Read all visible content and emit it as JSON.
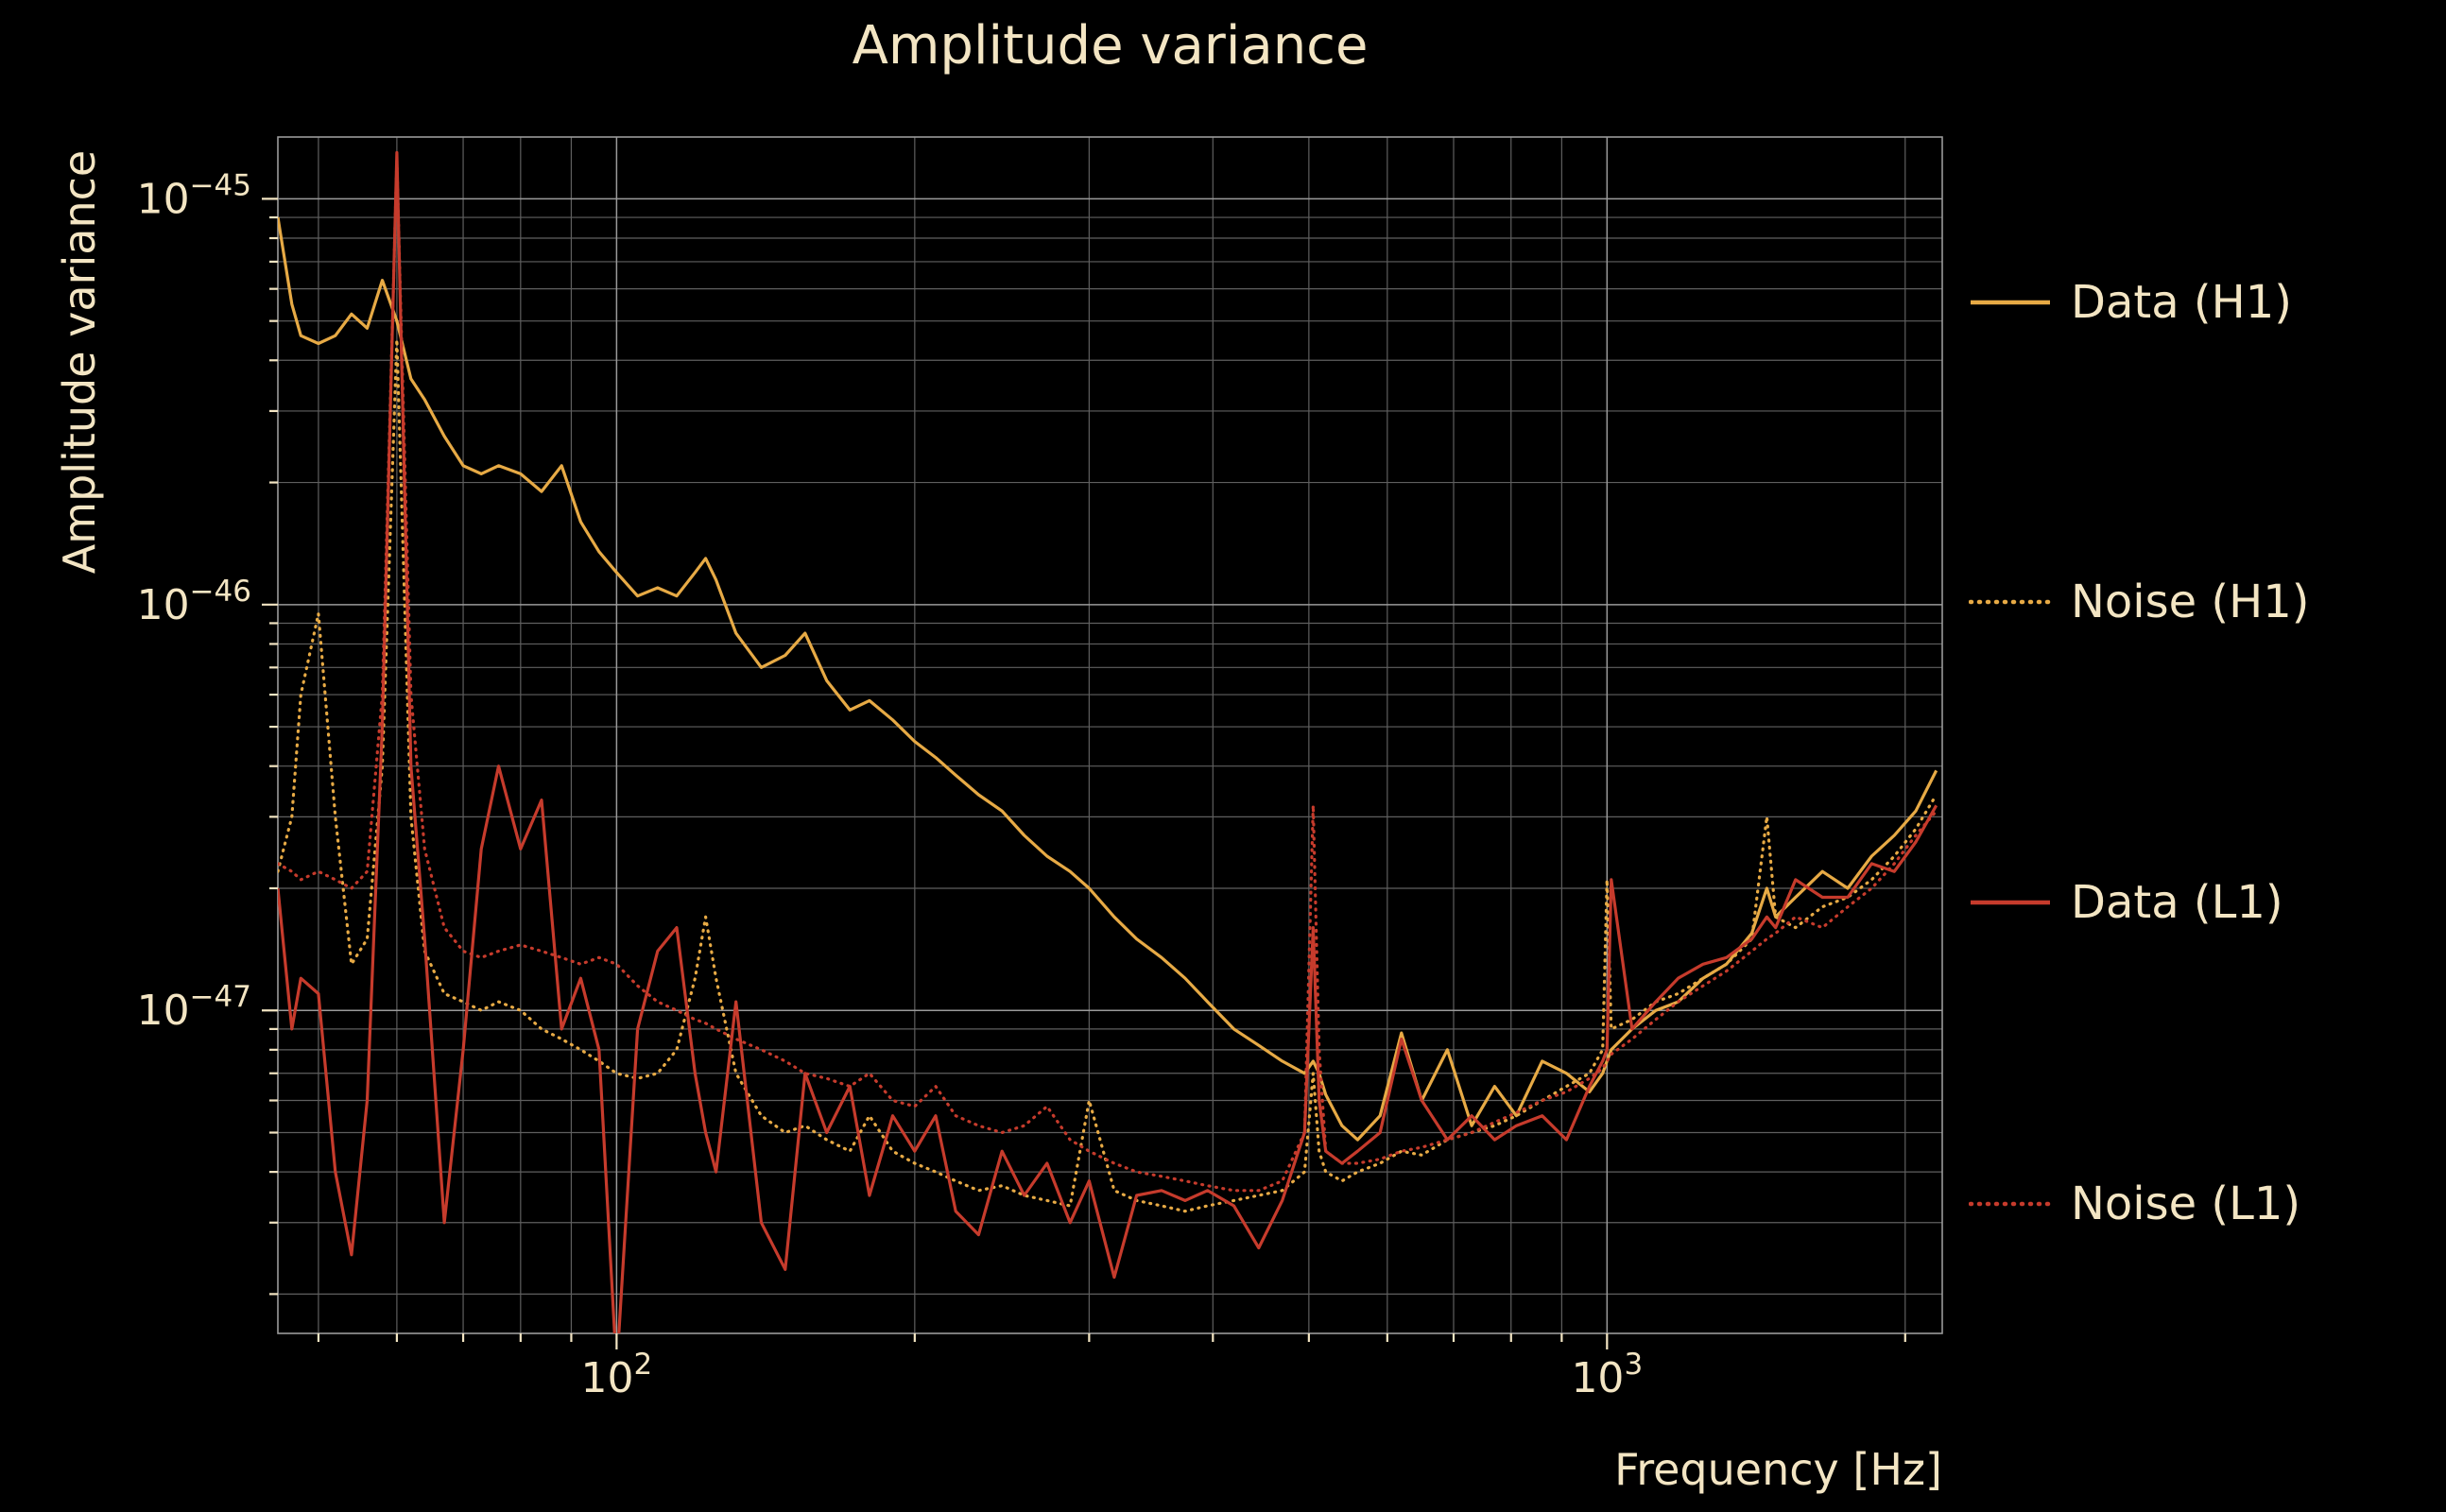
{
  "title": "Amplitude variance",
  "colors": {
    "background": "#000000",
    "text": "#f3e5c3",
    "gold": "#e7aa45",
    "red": "#c63b2c",
    "grid_major": "#9a9a9a",
    "grid_minor": "#5f5f5f"
  },
  "chart_data": {
    "type": "line",
    "title": "Amplitude variance",
    "xlabel": "Frequency [Hz]",
    "ylabel": "Amplitude variance",
    "xscale": "log",
    "yscale": "log",
    "grid": true,
    "legend_position": "right",
    "xlim": [
      45.5,
      2180
    ],
    "ylim": [
      1.6e-48,
      1.42e-45
    ],
    "x_ticks": [
      {
        "v": 100,
        "base": "10",
        "sup": "2"
      },
      {
        "v": 1000,
        "base": "10",
        "sup": "3"
      }
    ],
    "y_ticks": [
      {
        "v": 1e-45,
        "base": "10",
        "sup": "−45"
      },
      {
        "v": 1e-46,
        "base": "10",
        "sup": "−46"
      },
      {
        "v": 1e-47,
        "base": "10",
        "sup": "−47"
      }
    ],
    "x": [
      45.5,
      47,
      48,
      50,
      52,
      54,
      56,
      58,
      60,
      62,
      64,
      67,
      70,
      73,
      76,
      80,
      84,
      88,
      92,
      96,
      100,
      105,
      110,
      115,
      120,
      123,
      126,
      132,
      140,
      148,
      155,
      163,
      172,
      180,
      190,
      200,
      210,
      220,
      232,
      245,
      258,
      272,
      287,
      300,
      318,
      335,
      355,
      375,
      395,
      420,
      445,
      470,
      495,
      505,
      512,
      520,
      540,
      560,
      590,
      620,
      650,
      690,
      730,
      770,
      810,
      860,
      910,
      960,
      990,
      1000,
      1010,
      1060,
      1120,
      1180,
      1250,
      1320,
      1400,
      1450,
      1480,
      1550,
      1650,
      1750,
      1850,
      1950,
      2050,
      2150
    ],
    "series": [
      {
        "name": "Data (H1)",
        "color": "#e7aa45",
        "style": "solid",
        "values": [
          9e-46,
          5.5e-46,
          4.6e-46,
          4.4e-46,
          4.6e-46,
          5.2e-46,
          4.8e-46,
          6.3e-46,
          5e-46,
          3.6e-46,
          3.2e-46,
          2.6e-46,
          2.2e-46,
          2.1e-46,
          2.2e-46,
          2.1e-46,
          1.9e-46,
          2.2e-46,
          1.6e-46,
          1.35e-46,
          1.2e-46,
          1.05e-46,
          1.1e-46,
          1.05e-46,
          1.2e-46,
          1.3e-46,
          1.15e-46,
          8.5e-47,
          7e-47,
          7.5e-47,
          8.5e-47,
          6.5e-47,
          5.5e-47,
          5.8e-47,
          5.2e-47,
          4.6e-47,
          4.2e-47,
          3.8e-47,
          3.4e-47,
          3.1e-47,
          2.7e-47,
          2.4e-47,
          2.2e-47,
          2e-47,
          1.7e-47,
          1.5e-47,
          1.35e-47,
          1.2e-47,
          1.05e-47,
          9e-48,
          8.2e-48,
          7.5e-48,
          7e-48,
          7.5e-48,
          7e-48,
          6.2e-48,
          5.2e-48,
          4.8e-48,
          5.5e-48,
          8.8e-48,
          6e-48,
          8e-48,
          5.2e-48,
          6.5e-48,
          5.5e-48,
          7.5e-48,
          7e-48,
          6.3e-48,
          7e-48,
          7.5e-48,
          8e-48,
          9e-48,
          1e-47,
          1.05e-47,
          1.2e-47,
          1.3e-47,
          1.55e-47,
          2e-47,
          1.7e-47,
          1.9e-47,
          2.2e-47,
          2e-47,
          2.4e-47,
          2.7e-47,
          3.1e-47,
          3.9e-47
        ]
      },
      {
        "name": "Noise (H1)",
        "color": "#e7aa45",
        "style": "dotted",
        "values": [
          2.2e-47,
          3e-47,
          6e-47,
          9.5e-47,
          3e-47,
          1.3e-47,
          1.5e-47,
          4e-47,
          4.5e-46,
          3e-47,
          1.4e-47,
          1.1e-47,
          1.05e-47,
          1e-47,
          1.05e-47,
          1e-47,
          9e-48,
          8.5e-48,
          8e-48,
          7.5e-48,
          7e-48,
          6.8e-48,
          7e-48,
          8e-48,
          1.2e-47,
          1.7e-47,
          1.2e-47,
          7e-48,
          5.5e-48,
          5e-48,
          5.2e-48,
          4.8e-48,
          4.5e-48,
          5.5e-48,
          4.5e-48,
          4.2e-48,
          4e-48,
          3.8e-48,
          3.6e-48,
          3.7e-48,
          3.5e-48,
          3.4e-48,
          3.3e-48,
          6e-48,
          3.6e-48,
          3.4e-48,
          3.3e-48,
          3.2e-48,
          3.3e-48,
          3.4e-48,
          3.5e-48,
          3.6e-48,
          4e-48,
          7e-48,
          4.5e-48,
          4e-48,
          3.8e-48,
          4e-48,
          4.2e-48,
          4.5e-48,
          4.4e-48,
          4.8e-48,
          5e-48,
          5.2e-48,
          5.5e-48,
          6e-48,
          6.5e-48,
          7e-48,
          8e-48,
          2.1e-47,
          9e-48,
          9.5e-48,
          1.05e-47,
          1.1e-47,
          1.2e-47,
          1.3e-47,
          1.5e-47,
          3e-47,
          1.7e-47,
          1.6e-47,
          1.8e-47,
          1.9e-47,
          2.1e-47,
          2.4e-47,
          2.8e-47,
          3.4e-47
        ]
      },
      {
        "name": "Data (L1)",
        "color": "#c63b2c",
        "style": "solid",
        "values": [
          2e-47,
          9e-48,
          1.2e-47,
          1.1e-47,
          4e-48,
          2.5e-48,
          6e-48,
          5e-47,
          1.3e-45,
          4e-47,
          1.5e-47,
          3e-48,
          8e-48,
          2.5e-47,
          4e-47,
          2.5e-47,
          3.3e-47,
          9e-48,
          1.2e-47,
          8e-48,
          1.3e-48,
          9e-48,
          1.4e-47,
          1.6e-47,
          7e-48,
          5e-48,
          4e-48,
          1.05e-47,
          3e-48,
          2.3e-48,
          7e-48,
          5e-48,
          6.5e-48,
          3.5e-48,
          5.5e-48,
          4.5e-48,
          5.5e-48,
          3.2e-48,
          2.8e-48,
          4.5e-48,
          3.5e-48,
          4.2e-48,
          3e-48,
          3.8e-48,
          2.2e-48,
          3.5e-48,
          3.6e-48,
          3.4e-48,
          3.6e-48,
          3.3e-48,
          2.6e-48,
          3.4e-48,
          5e-48,
          1.6e-47,
          6e-48,
          4.5e-48,
          4.2e-48,
          4.5e-48,
          5e-48,
          8.5e-48,
          6e-48,
          4.8e-48,
          5.5e-48,
          4.8e-48,
          5.2e-48,
          5.5e-48,
          4.8e-48,
          6.5e-48,
          7.5e-48,
          8e-48,
          2.1e-47,
          9e-48,
          1.05e-47,
          1.2e-47,
          1.3e-47,
          1.35e-47,
          1.5e-47,
          1.7e-47,
          1.6e-47,
          2.1e-47,
          1.9e-47,
          1.9e-47,
          2.3e-47,
          2.2e-47,
          2.6e-47,
          3.2e-47
        ]
      },
      {
        "name": "Noise (L1)",
        "color": "#c63b2c",
        "style": "dotted",
        "values": [
          2.3e-47,
          2.2e-47,
          2.1e-47,
          2.2e-47,
          2.1e-47,
          2e-47,
          2.2e-47,
          6e-47,
          1.25e-45,
          6e-47,
          2.5e-47,
          1.6e-47,
          1.4e-47,
          1.35e-47,
          1.4e-47,
          1.45e-47,
          1.4e-47,
          1.35e-47,
          1.3e-47,
          1.35e-47,
          1.3e-47,
          1.15e-47,
          1.05e-47,
          1e-47,
          9.5e-48,
          9.3e-48,
          9e-48,
          8.5e-48,
          8e-48,
          7.5e-48,
          7e-48,
          6.8e-48,
          6.5e-48,
          7e-48,
          6e-48,
          5.8e-48,
          6.5e-48,
          5.5e-48,
          5.2e-48,
          5e-48,
          5.2e-48,
          5.8e-48,
          4.8e-48,
          4.5e-48,
          4.2e-48,
          4e-48,
          3.9e-48,
          3.8e-48,
          3.7e-48,
          3.6e-48,
          3.6e-48,
          3.8e-48,
          5e-48,
          3.2e-47,
          8e-48,
          4.5e-48,
          4.2e-48,
          4.2e-48,
          4.3e-48,
          4.5e-48,
          4.6e-48,
          4.8e-48,
          5e-48,
          5.3e-48,
          5.6e-48,
          6e-48,
          6.3e-48,
          6.8e-48,
          7.2e-48,
          7.5e-48,
          7.8e-48,
          8.5e-48,
          9.5e-48,
          1.05e-47,
          1.15e-47,
          1.25e-47,
          1.4e-47,
          1.5e-47,
          1.55e-47,
          1.7e-47,
          1.6e-47,
          1.8e-47,
          2e-47,
          2.3e-47,
          2.7e-47,
          3.1e-47
        ]
      }
    ]
  }
}
